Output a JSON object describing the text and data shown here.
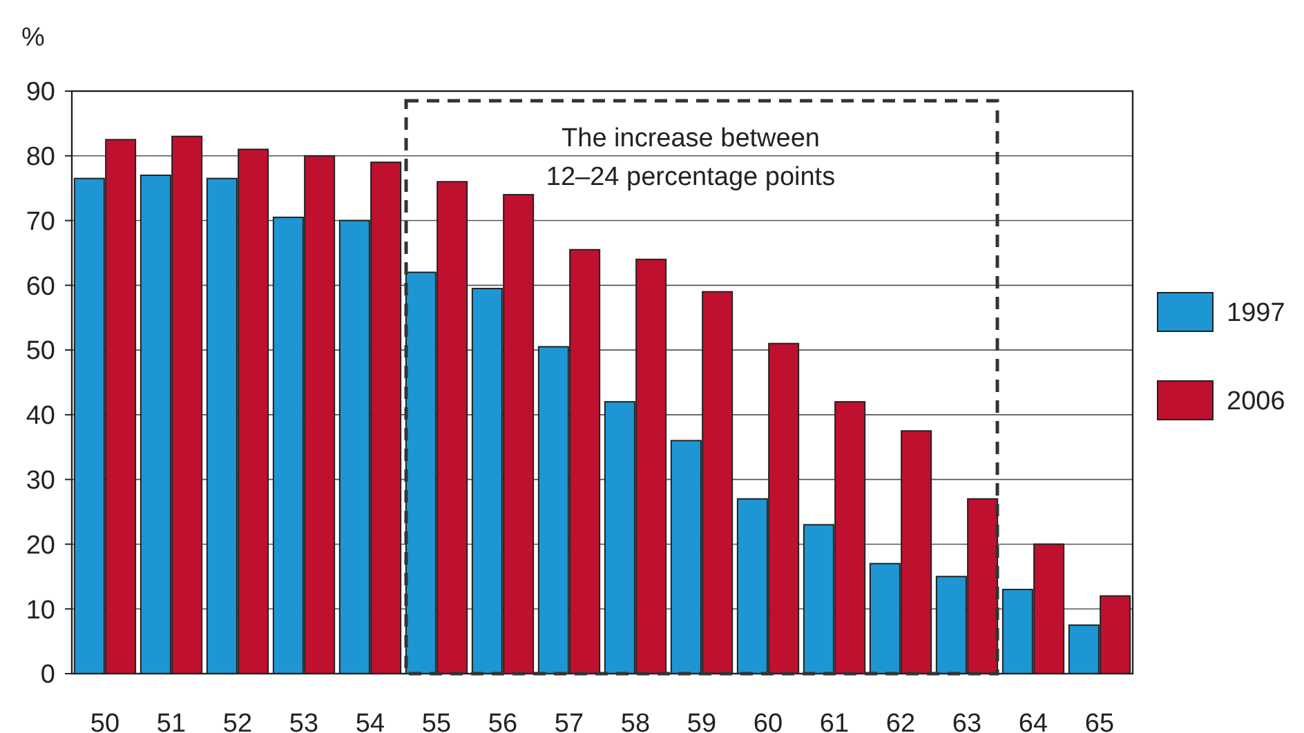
{
  "chart_data": {
    "type": "bar",
    "ylabel": "%",
    "categories": [
      "50",
      "51",
      "52",
      "53",
      "54",
      "55",
      "56",
      "57",
      "58",
      "59",
      "60",
      "61",
      "62",
      "63",
      "64",
      "65"
    ],
    "series": [
      {
        "name": "1997",
        "color": "#1f96d4",
        "values": [
          76.5,
          77,
          76.5,
          70.5,
          70,
          62,
          59.5,
          50.5,
          42,
          36,
          27,
          23,
          17,
          15,
          13,
          7.5
        ]
      },
      {
        "name": "2006",
        "color": "#c0102f",
        "values": [
          82.5,
          83,
          81,
          80,
          79,
          76,
          74,
          65.5,
          64,
          59,
          51,
          42,
          37.5,
          27,
          20,
          12
        ]
      }
    ],
    "ylim": [
      0,
      90
    ],
    "yticks": [
      0,
      10,
      20,
      30,
      40,
      50,
      60,
      70,
      80,
      90
    ],
    "grid": "y",
    "legend": "right",
    "annotations": [
      "The increase between\n12–24 percentage points"
    ]
  }
}
